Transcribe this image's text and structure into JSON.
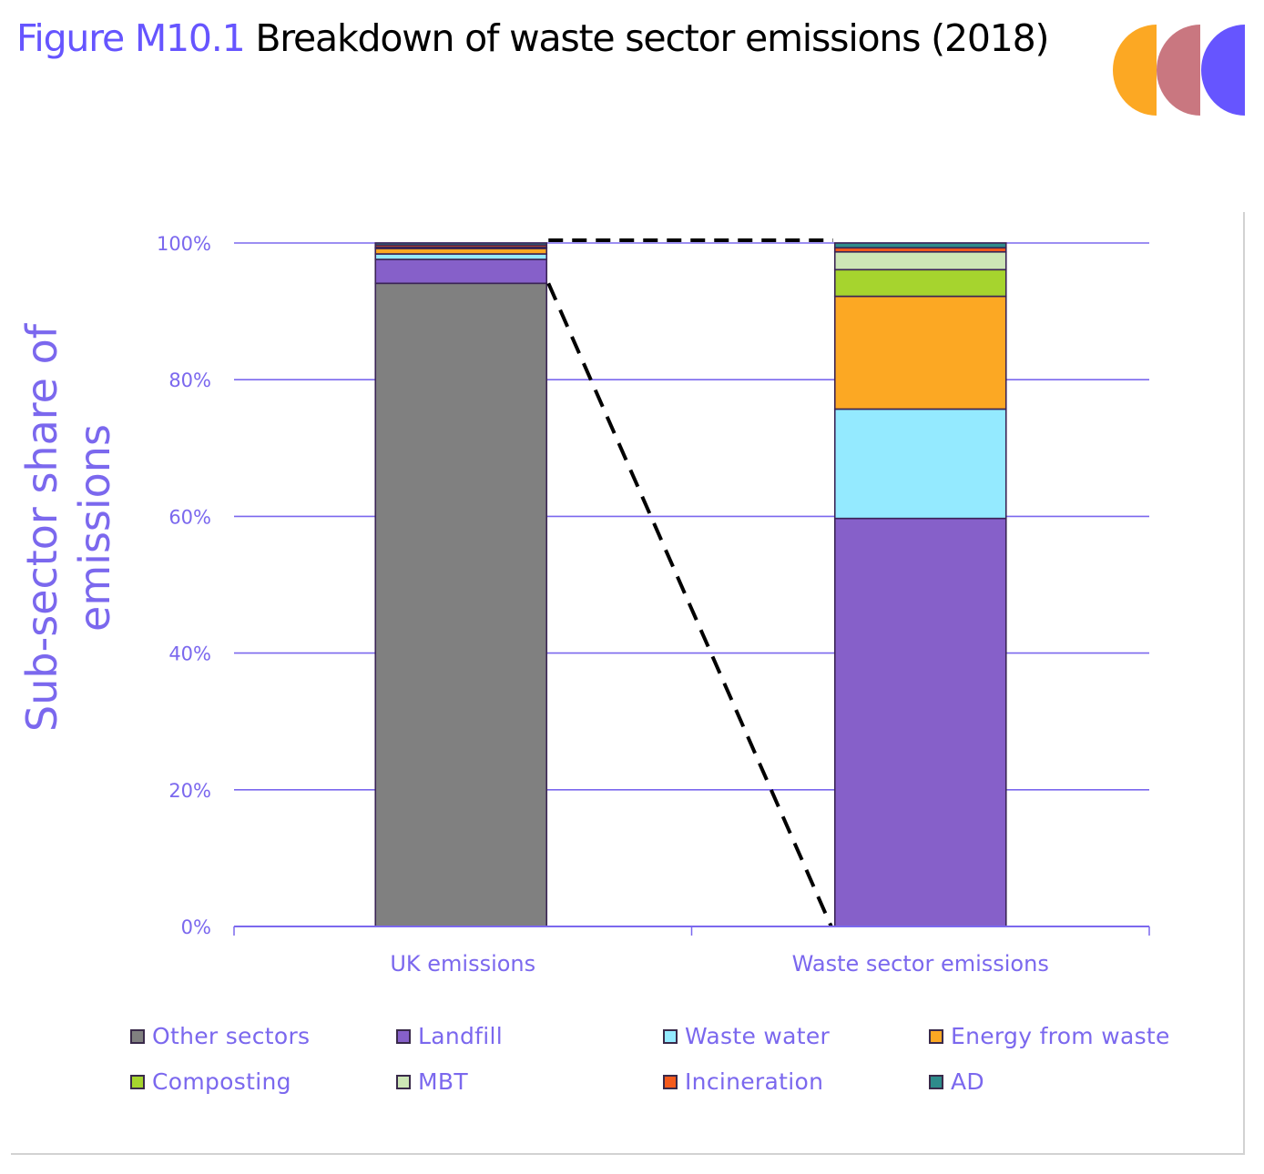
{
  "title": {
    "figure_label": "Figure M10.1",
    "text": "Breakdown of waste sector emissions (2018)"
  },
  "logo": {
    "name": "three-semicircles-logo",
    "colors": [
      "#fca823",
      "#c97780",
      "#6655ff"
    ]
  },
  "chart_data": {
    "type": "bar",
    "stacked": true,
    "title": "Breakdown of waste sector emissions (2018)",
    "xlabel": "",
    "ylabel": "Sub-sector share of emissions",
    "ylim": [
      0,
      100
    ],
    "yticks": [
      "0%",
      "20%",
      "40%",
      "60%",
      "80%",
      "100%"
    ],
    "ytick_values": [
      0,
      20,
      40,
      60,
      80,
      100
    ],
    "grid": true,
    "legend_position": "bottom",
    "categories": [
      "UK emissions",
      "Waste sector emissions"
    ],
    "series": [
      {
        "name": "Other sectors",
        "color": "#808080",
        "values": [
          94.1,
          0
        ]
      },
      {
        "name": "Landfill",
        "color": "#8660c9",
        "values": [
          3.5,
          59.7
        ]
      },
      {
        "name": "Waste water",
        "color": "#94eaff",
        "values": [
          0.8,
          16.0
        ]
      },
      {
        "name": "Energy from waste",
        "color": "#fca823",
        "values": [
          0.8,
          16.5
        ]
      },
      {
        "name": "Composting",
        "color": "#a6d42e",
        "values": [
          0.1,
          3.9
        ]
      },
      {
        "name": "MBT",
        "color": "#cde6b6",
        "values": [
          0.1,
          2.6
        ]
      },
      {
        "name": "Incineration",
        "color": "#f55a1c",
        "values": [
          0.3,
          0.6
        ]
      },
      {
        "name": "AD",
        "color": "#2e8b8b",
        "values": [
          0.3,
          0.7
        ]
      }
    ],
    "annotations": [
      {
        "type": "dashed-connector",
        "description": "Dashed lines linking the waste share of UK emissions to the full waste sector breakdown bar"
      }
    ]
  },
  "legend": {
    "items": [
      {
        "label": "Other sectors",
        "color": "#808080"
      },
      {
        "label": "Landfill",
        "color": "#8660c9"
      },
      {
        "label": "Waste water",
        "color": "#94eaff"
      },
      {
        "label": "Energy from waste",
        "color": "#fca823"
      },
      {
        "label": "Composting",
        "color": "#a6d42e"
      },
      {
        "label": "MBT",
        "color": "#cde6b6"
      },
      {
        "label": "Incineration",
        "color": "#f55a1c"
      },
      {
        "label": "AD",
        "color": "#2e8b8b"
      }
    ]
  },
  "colors": {
    "accent": "#6655ff",
    "axis_text": "#7b68ee",
    "gridline": "#7b68ee"
  }
}
